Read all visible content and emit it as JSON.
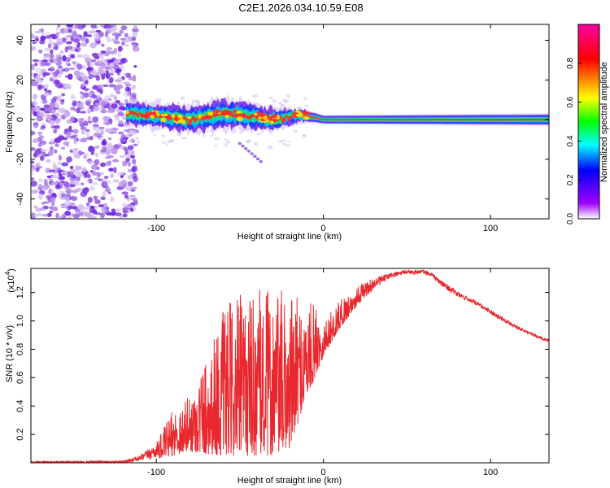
{
  "title": "C2E1.2026.034.10.59.E08",
  "chart_data": [
    {
      "type": "heatmap",
      "xlabel": "Height of straight line (km)",
      "ylabel": "Frequency (Hz)",
      "xlim": [
        -175,
        135
      ],
      "ylim": [
        -50,
        48
      ],
      "xticks": [
        -100,
        0,
        100
      ],
      "xtick_labels": [
        "-100",
        "0",
        "100"
      ],
      "yticks": [
        -40,
        -20,
        0,
        20,
        40
      ],
      "ytick_labels": [
        "-40",
        "-20",
        "0",
        "20",
        "40"
      ],
      "colorbar": {
        "label": "Normalized spectral amplitude",
        "range": [
          0,
          1
        ],
        "ticks": [
          0,
          0.2,
          0.4,
          0.6,
          0.8
        ],
        "tick_labels": [
          "0.0",
          "0.2",
          "0.4",
          "0.6",
          "0.8"
        ],
        "colors": [
          "#ffffff",
          "#a000ff",
          "#0000ff",
          "#00ffff",
          "#00ff00",
          "#ffff00",
          "#ff0000",
          "#ff00a0"
        ]
      },
      "noise_region_x": [
        -175,
        -118
      ],
      "band_center_hz": [
        [
          -118,
          3
        ],
        [
          -100,
          2
        ],
        [
          -80,
          0
        ],
        [
          -60,
          3
        ],
        [
          -45,
          2
        ],
        [
          -30,
          0
        ],
        [
          -15,
          2
        ],
        [
          -5,
          1
        ],
        [
          0,
          0
        ],
        [
          135,
          0
        ]
      ],
      "band_halfwidth_hz": [
        [
          -118,
          4
        ],
        [
          -60,
          5
        ],
        [
          -30,
          4
        ],
        [
          -10,
          2
        ],
        [
          0,
          1.5
        ],
        [
          135,
          2
        ]
      ],
      "colors": {
        "noise": "#8a4fe0",
        "dense": "#6a00e8"
      }
    },
    {
      "type": "line",
      "xlabel": "Height of straight line (km)",
      "ylabel": "SNR (10 * v/v)",
      "y_scale_label": "(x10",
      "y_scale_exp": "4",
      "xlim": [
        -175,
        135
      ],
      "ylim": [
        0,
        1.37
      ],
      "xticks": [
        -100,
        0,
        100
      ],
      "xtick_labels": [
        "-100",
        "0",
        "100"
      ],
      "yticks": [
        0.2,
        0.4,
        0.6,
        0.8,
        1.0,
        1.2
      ],
      "ytick_labels": [
        "0.2",
        "0.4",
        "0.6",
        "0.8",
        "1.0",
        "1.2"
      ],
      "series": [
        {
          "name": "SNR",
          "color": "#e8282e",
          "envelope": {
            "x": [
              -175,
              -120,
              -110,
              -100,
              -90,
              -80,
              -70,
              -60,
              -50,
              -40,
              -30,
              -20,
              -12,
              -5,
              0,
              10,
              20,
              30,
              40,
              50,
              60,
              65,
              70,
              80,
              90,
              100,
              110,
              120,
              130,
              135
            ],
            "lower": [
              0.0,
              0.0,
              0.01,
              0.03,
              0.05,
              0.08,
              0.06,
              0.05,
              0.05,
              0.05,
              0.05,
              0.1,
              0.4,
              0.6,
              0.75,
              0.95,
              1.1,
              1.22,
              1.3,
              1.33,
              1.33,
              1.31,
              1.25,
              1.17,
              1.12,
              1.05,
              0.98,
              0.92,
              0.87,
              0.85
            ],
            "upper": [
              0.01,
              0.015,
              0.05,
              0.14,
              0.38,
              0.48,
              0.78,
              1.08,
              1.2,
              1.22,
              1.23,
              1.2,
              1.13,
              1.12,
              1.0,
              1.15,
              1.25,
              1.3,
              1.34,
              1.36,
              1.36,
              1.34,
              1.29,
              1.21,
              1.15,
              1.08,
              1.01,
              0.94,
              0.89,
              0.87
            ]
          }
        }
      ]
    }
  ]
}
